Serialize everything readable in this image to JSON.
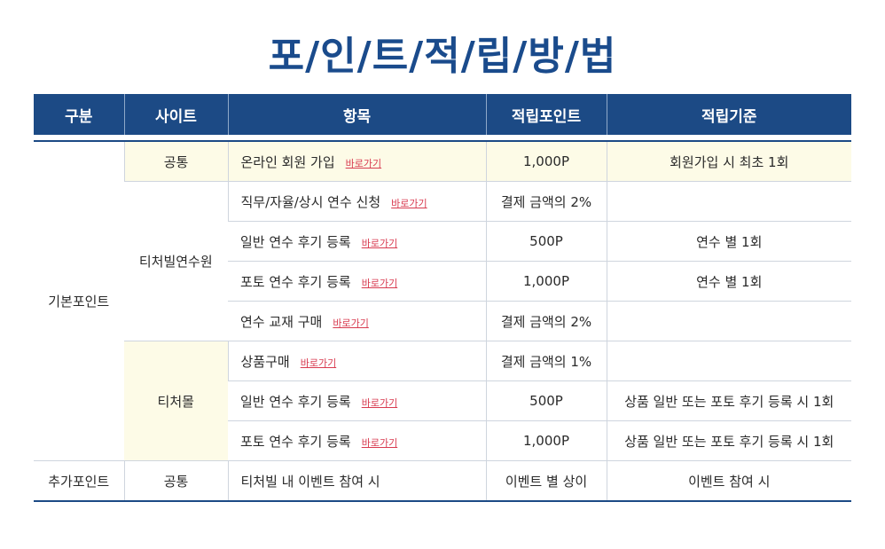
{
  "title": "포/인/트/적/립/방/법",
  "headers": [
    "구분",
    "사이트",
    "항목",
    "적립포인트",
    "적립기준"
  ],
  "link_label": "바로가기",
  "categories": {
    "basic": "기본포인트",
    "extra": "추가포인트"
  },
  "sites": {
    "common": "공통",
    "academy": "티처빌연수원",
    "mall": "티처몰"
  },
  "rows": [
    {
      "item": "온라인 회원 가입",
      "points": "1,000P",
      "criteria": "회원가입 시 최초 1회"
    },
    {
      "item": "직무/자율/상시 연수 신청",
      "points": "결제 금액의 2%",
      "criteria": ""
    },
    {
      "item": "일반 연수 후기 등록",
      "points": "500P",
      "criteria": "연수 별 1회"
    },
    {
      "item": "포토 연수 후기 등록",
      "points": "1,000P",
      "criteria": "연수 별 1회"
    },
    {
      "item": "연수 교재 구매",
      "points": "결제 금액의 2%",
      "criteria": ""
    },
    {
      "item": "상품구매",
      "points": "결제 금액의 1%",
      "criteria": ""
    },
    {
      "item": "일반 연수 후기 등록",
      "points": "500P",
      "criteria": "상품 일반 또는 포토 후기 등록 시 1회"
    },
    {
      "item": "포토 연수 후기 등록",
      "points": "1,000P",
      "criteria": "상품 일반 또는 포토 후기 등록 시 1회"
    },
    {
      "item": "티처빌 내 이벤트 참여 시",
      "points": "이벤트 별 상이",
      "criteria": "이벤트 참여 시"
    }
  ],
  "colors": {
    "header_bg": "#1c4a85",
    "title": "#1a4b8c",
    "link": "#d83a4f",
    "highlight_bg": "#fdfbe7"
  }
}
